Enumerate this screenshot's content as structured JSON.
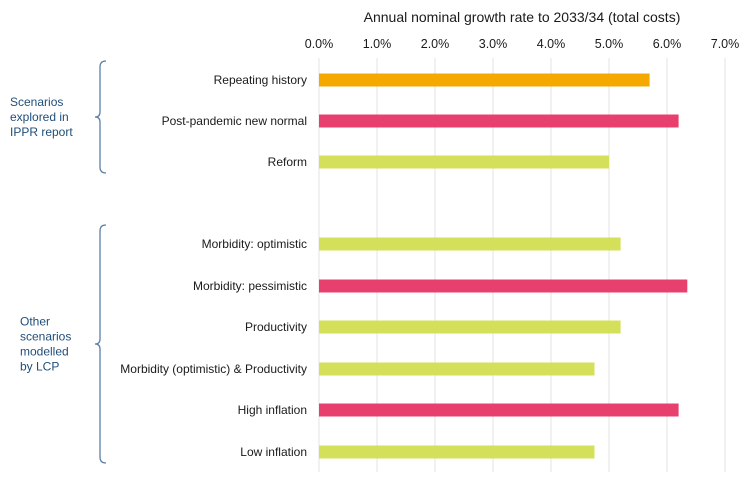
{
  "chart_data": {
    "type": "bar",
    "orientation": "horizontal",
    "title": "Annual nominal growth rate to 2033/34 (total costs)",
    "xlim": [
      0,
      7
    ],
    "x_ticks": [
      "0.0%",
      "1.0%",
      "2.0%",
      "3.0%",
      "4.0%",
      "5.0%",
      "6.0%",
      "7.0%"
    ],
    "axis_position": "top",
    "grid": true,
    "categories": [
      "Repeating history",
      "Post-pandemic new normal",
      "Reform",
      "Morbidity: optimistic",
      "Morbidity: pessimistic",
      "Productivity",
      "Morbidity (optimistic) & Productivity",
      "High inflation",
      "Low inflation"
    ],
    "values": [
      5.7,
      6.2,
      5.0,
      5.2,
      6.35,
      5.2,
      4.75,
      6.2,
      4.75
    ],
    "bar_colors": [
      "#f5a800",
      "#e8406e",
      "#d4df5a",
      "#d4df5a",
      "#e8406e",
      "#d4df5a",
      "#d4df5a",
      "#e8406e",
      "#d4df5a"
    ],
    "groups": [
      {
        "lines": [
          "Scenarios",
          "explored in",
          "IPPR report"
        ],
        "start": 0,
        "end": 2
      },
      {
        "lines": [
          "Other",
          "scenarios",
          "modelled",
          "by LCP"
        ],
        "start": 3,
        "end": 8
      }
    ]
  }
}
